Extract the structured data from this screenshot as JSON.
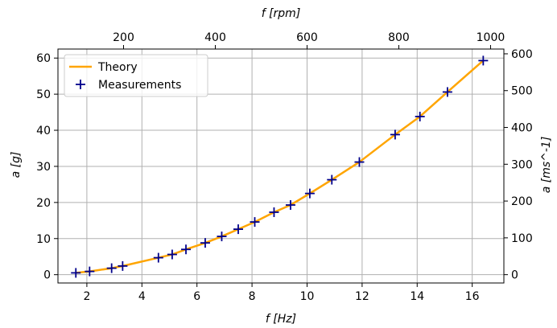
{
  "chart_data": {
    "type": "line",
    "title": "",
    "xlabel": "f [Hz]",
    "ylabel": "a [g]",
    "x2label": "f [rpm]",
    "y2label": "a [ms^-1]",
    "xlim": [
      0.95,
      17.15
    ],
    "ylim": [
      -2.3,
      62.5
    ],
    "x2lim": [
      57,
      1029
    ],
    "y2lim": [
      -22.6,
      613
    ],
    "xticks": [
      2,
      4,
      6,
      8,
      10,
      12,
      14,
      16
    ],
    "yticks": [
      0,
      10,
      20,
      30,
      40,
      50,
      60
    ],
    "x2ticks": [
      200,
      400,
      600,
      800,
      1000
    ],
    "y2ticks": [
      0,
      100,
      200,
      300,
      400,
      500,
      600
    ],
    "grid": true,
    "legend": {
      "placement": "top-left",
      "entries": [
        "Theory",
        "Measurements"
      ]
    },
    "colors": {
      "theory": "#ffa500",
      "measurements": "#00008b",
      "grid": "#b0b0b0"
    },
    "series": [
      {
        "name": "Theory",
        "style": "line",
        "x": [
          1.6,
          2.1,
          2.9,
          3.3,
          4.6,
          5.1,
          5.6,
          6.3,
          6.9,
          7.5,
          8.1,
          8.8,
          9.4,
          10.1,
          10.9,
          11.9,
          13.2,
          14.1,
          15.1,
          16.4
        ],
        "y": [
          0.5,
          0.9,
          1.8,
          2.4,
          4.7,
          5.6,
          7.0,
          8.8,
          10.6,
          12.6,
          14.6,
          17.3,
          19.3,
          22.5,
          26.3,
          31.2,
          38.8,
          43.8,
          50.6,
          59.3
        ]
      },
      {
        "name": "Measurements",
        "style": "marker",
        "x": [
          1.6,
          2.1,
          2.9,
          3.3,
          4.6,
          5.1,
          5.6,
          6.3,
          6.9,
          7.5,
          8.1,
          8.8,
          9.4,
          10.1,
          10.9,
          11.9,
          13.2,
          14.1,
          15.1,
          16.4
        ],
        "y": [
          0.5,
          0.9,
          1.8,
          2.4,
          4.7,
          5.6,
          7.0,
          8.8,
          10.6,
          12.6,
          14.6,
          17.3,
          19.3,
          22.5,
          26.3,
          31.2,
          38.8,
          43.8,
          50.6,
          59.3
        ]
      }
    ]
  }
}
